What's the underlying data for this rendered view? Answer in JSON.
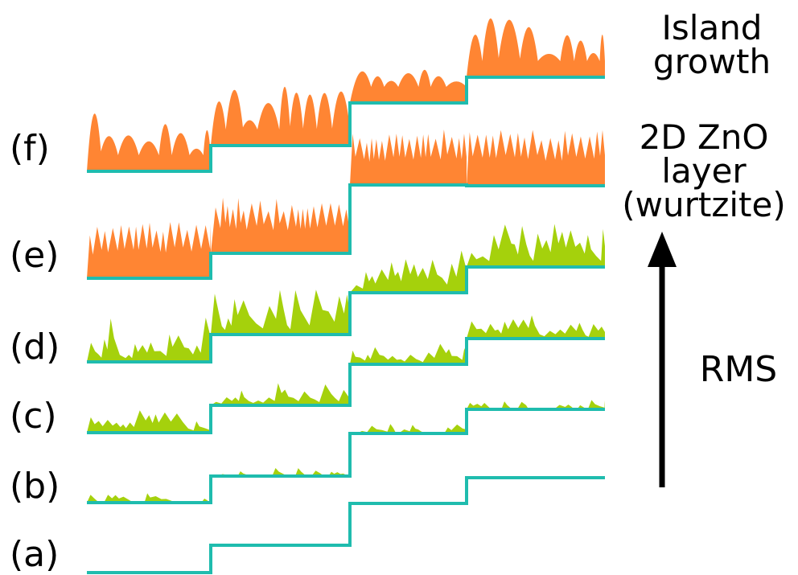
{
  "colors": {
    "step": "#1fbcae",
    "orange": "#ff8533",
    "green": "#a5d10c",
    "arrow": "#000000"
  },
  "rows": [
    {
      "id": "f",
      "label": "(f)",
      "fill": "orange",
      "roughness": "islands"
    },
    {
      "id": "e",
      "label": "(e)",
      "fill": "orange",
      "roughness": "fine-layer"
    },
    {
      "id": "d",
      "label": "(d)",
      "fill": "green",
      "roughness": "high"
    },
    {
      "id": "c",
      "label": "(c)",
      "fill": "green",
      "roughness": "medium"
    },
    {
      "id": "b",
      "label": "(b)",
      "fill": "green",
      "roughness": "sparse"
    },
    {
      "id": "a",
      "label": "(a)",
      "fill": "none",
      "roughness": "none"
    }
  ],
  "annotations": {
    "island_growth_1": "Island",
    "island_growth_2": "growth",
    "zno_1": "2D ZnO",
    "zno_2": "layer",
    "zno_3": "(wurtzite)",
    "rms": "RMS"
  },
  "arrow": {
    "direction": "up",
    "icon": "arrow-up-icon"
  }
}
